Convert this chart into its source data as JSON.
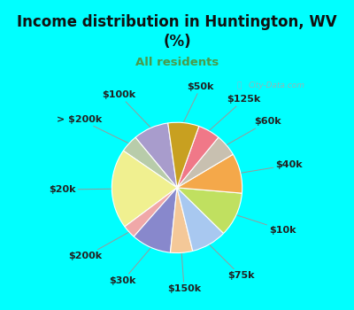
{
  "title": "Income distribution in Huntington, WV\n(%)",
  "subtitle": "All residents",
  "title_color": "#111111",
  "subtitle_color": "#4a9a4a",
  "bg_cyan": "#00FFFF",
  "watermark": "City-Data.com",
  "labels": [
    "$100k",
    "> $200k",
    "$20k",
    "$200k",
    "$30k",
    "$150k",
    "$75k",
    "$10k",
    "$40k",
    "$60k",
    "$125k",
    "$50k"
  ],
  "values": [
    8,
    4,
    18,
    3,
    9,
    5,
    8,
    10,
    9,
    5,
    5,
    7
  ],
  "colors": [
    "#a89ccc",
    "#b8ccaa",
    "#f0f090",
    "#f0a8a8",
    "#8888cc",
    "#f4c898",
    "#a8c8f0",
    "#c0e060",
    "#f4a84a",
    "#c8c0b0",
    "#f07888",
    "#c8a020"
  ],
  "label_fontsize": 8,
  "figsize": [
    4.0,
    3.5
  ],
  "dpi": 100,
  "startangle": 98
}
